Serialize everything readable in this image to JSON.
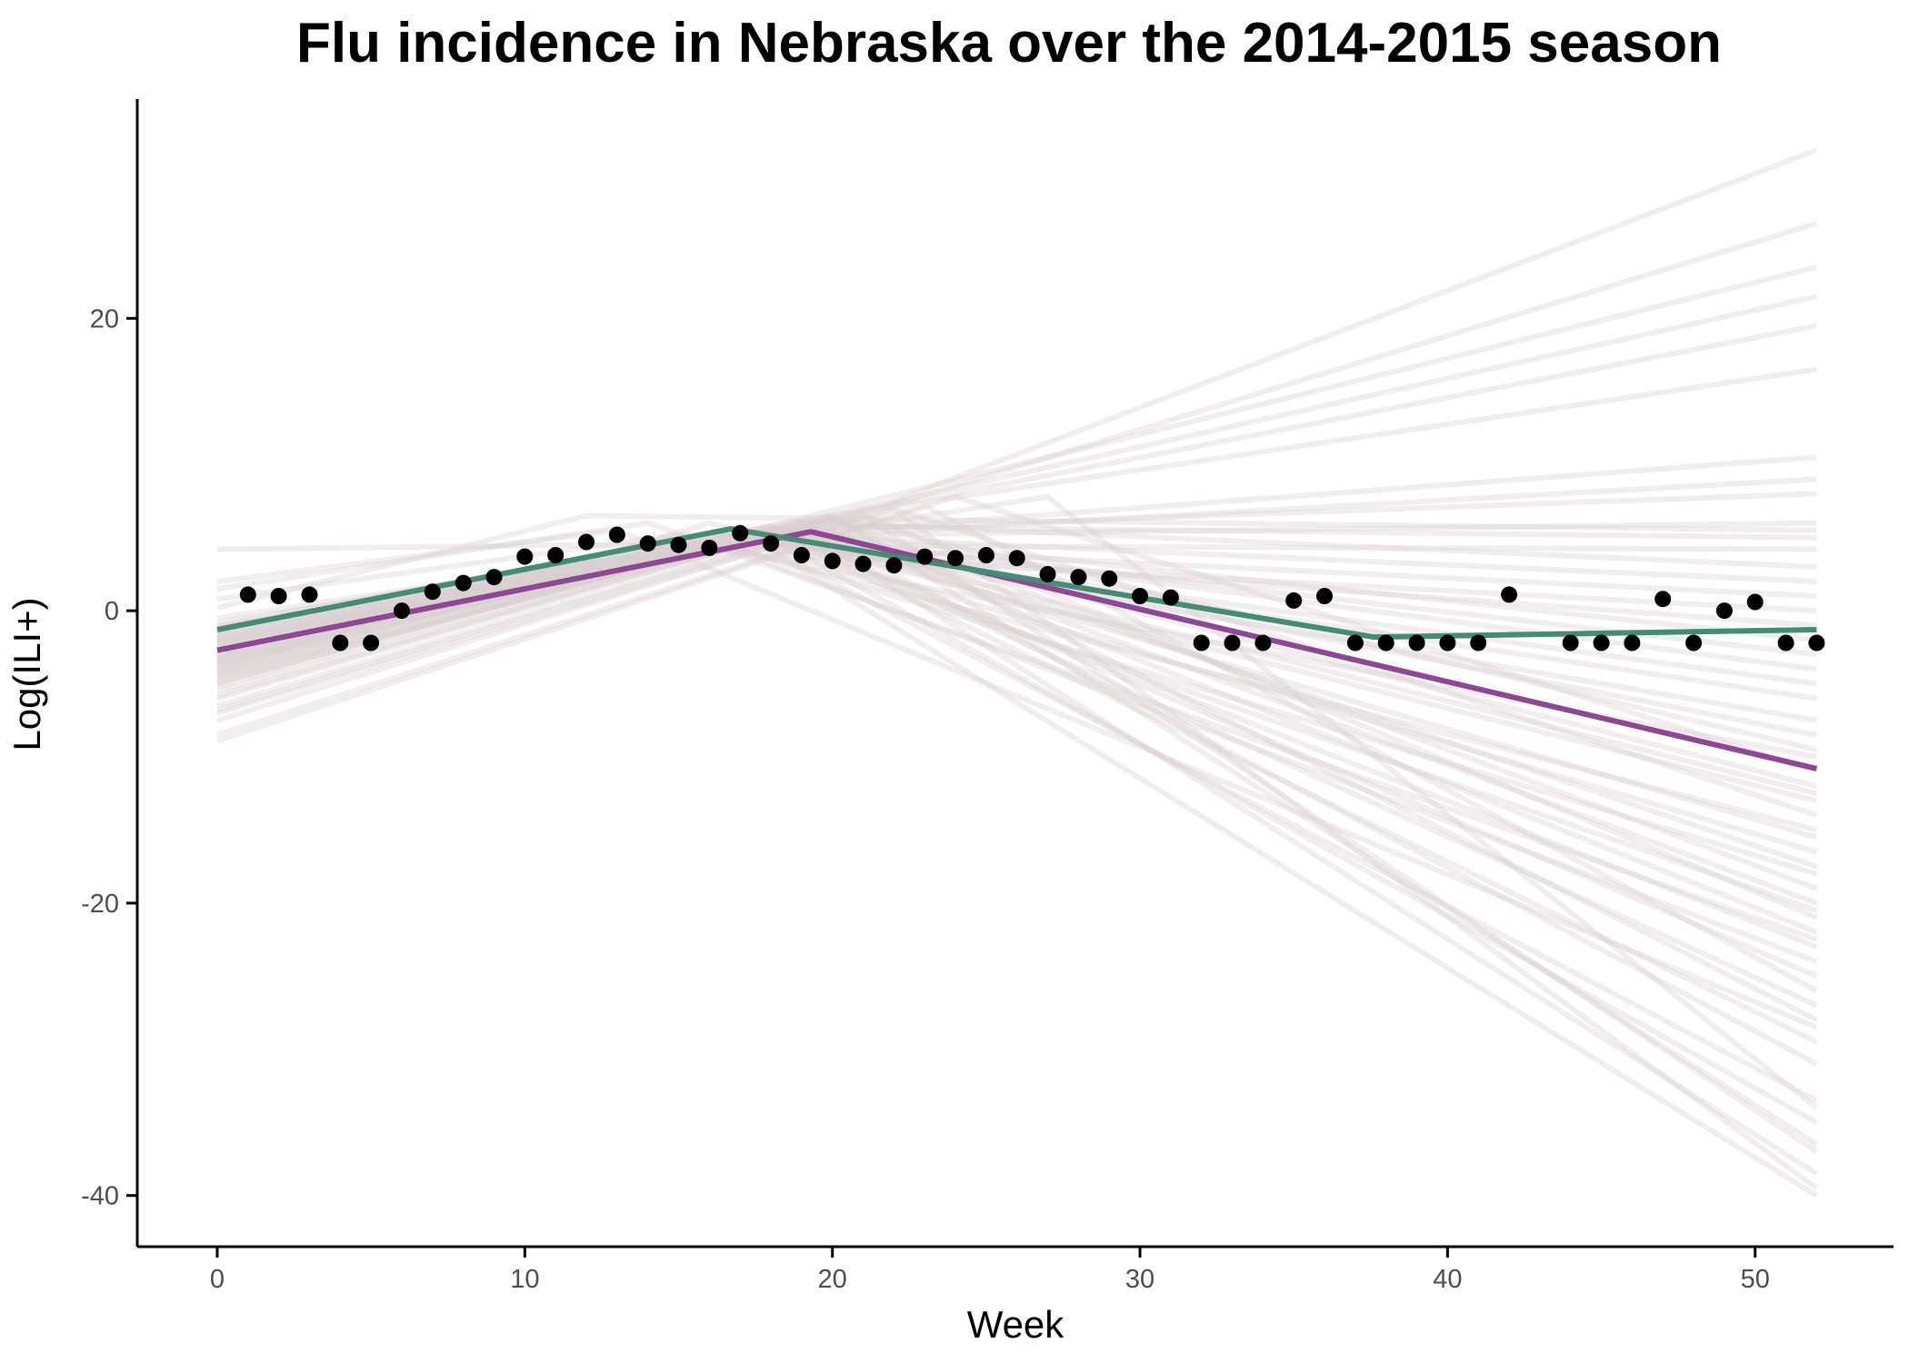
{
  "chart_data": {
    "type": "line",
    "title": "Flu incidence in Nebraska over the 2014-2015 season",
    "xlabel": "Week",
    "ylabel": "Log(ILI+)",
    "xlim": [
      -2.6,
      54.5
    ],
    "ylim": [
      -43.5,
      35
    ],
    "xticks": [
      0,
      10,
      20,
      30,
      40,
      50
    ],
    "yticks": [
      -40,
      -20,
      0,
      20
    ],
    "grid": false,
    "legend": "none",
    "colors": {
      "observed": "#000000",
      "green_fit": "#448c74",
      "purple_fit": "#8c4891",
      "posterior_draws": "#d9cfd2"
    },
    "observed": {
      "x": [
        1,
        2,
        3,
        4,
        5,
        6,
        7,
        8,
        9,
        10,
        11,
        12,
        13,
        14,
        15,
        16,
        17,
        18,
        19,
        20,
        21,
        22,
        23,
        24,
        25,
        26,
        27,
        28,
        29,
        30,
        31,
        32,
        33,
        34,
        35,
        36,
        37,
        38,
        39,
        40,
        41,
        42,
        44,
        45,
        46,
        47,
        48,
        49,
        50,
        51,
        52
      ],
      "y": [
        1.1,
        1.0,
        1.1,
        -2.2,
        -2.2,
        0.0,
        1.3,
        1.9,
        2.3,
        3.7,
        3.8,
        4.7,
        5.2,
        4.6,
        4.5,
        4.3,
        5.3,
        4.6,
        3.8,
        3.4,
        3.2,
        3.1,
        3.7,
        3.6,
        3.8,
        3.6,
        2.5,
        2.3,
        2.2,
        1.0,
        0.9,
        -2.2,
        -2.2,
        -2.2,
        0.7,
        1.0,
        -2.2,
        -2.2,
        -2.2,
        -2.2,
        -2.2,
        1.1,
        -2.2,
        -2.2,
        -2.2,
        0.8,
        -2.2,
        0.0,
        0.6,
        -2.2,
        -2.2
      ]
    },
    "series": [
      {
        "x": [
          0,
          16.7,
          37.6,
          52
        ],
        "y": [
          -1.3,
          5.6,
          -1.8,
          -1.3
        ]
      },
      {
        "x": [
          0,
          19.3,
          52
        ],
        "y": [
          -2.7,
          5.4,
          -10.8
        ]
      }
    ],
    "draws": [
      [
        -4.0,
        16,
        6.0,
        52,
        -13.0
      ],
      [
        -2.5,
        18,
        5.5,
        52,
        -8.5
      ],
      [
        -1.8,
        17,
        5.0,
        52,
        -6.0
      ],
      [
        -3.0,
        15,
        5.2,
        52,
        -15.0
      ],
      [
        -5.0,
        19,
        6.0,
        52,
        -20.0
      ],
      [
        -3.5,
        18,
        5.8,
        52,
        -25.0
      ],
      [
        -2.0,
        16,
        4.8,
        52,
        -18.0
      ],
      [
        -1.0,
        17,
        5.5,
        52,
        -3.0
      ],
      [
        -6.0,
        20,
        6.3,
        52,
        -28.0
      ],
      [
        -4.5,
        18,
        5.0,
        52,
        -35.0
      ],
      [
        -2.2,
        19,
        5.6,
        52,
        -38.5
      ],
      [
        -3.2,
        17,
        5.4,
        52,
        -40.0
      ],
      [
        -4.8,
        20,
        6.5,
        52,
        -36.5
      ],
      [
        -0.5,
        16,
        4.5,
        52,
        -1.0
      ],
      [
        -1.5,
        18,
        5.2,
        52,
        2.0
      ],
      [
        -3.8,
        19,
        5.8,
        52,
        5.0
      ],
      [
        -2.8,
        17,
        5.0,
        52,
        10.5
      ],
      [
        -1.2,
        15,
        4.6,
        52,
        9.0
      ],
      [
        -5.5,
        21,
        6.8,
        52,
        19.5
      ],
      [
        -4.2,
        18,
        5.6,
        52,
        21.5
      ],
      [
        -2.6,
        17,
        5.3,
        52,
        23.5
      ],
      [
        -1.6,
        19,
        6.2,
        52,
        16.5
      ],
      [
        -3.6,
        20,
        6.0,
        52,
        26.5
      ],
      [
        -4.6,
        22,
        7.5,
        52,
        31.5
      ],
      [
        -2.0,
        16,
        4.4,
        52,
        -10.0
      ],
      [
        -3.3,
        18,
        5.4,
        52,
        -12.5
      ],
      [
        -1.9,
        17,
        5.2,
        52,
        -16.5
      ],
      [
        -4.4,
        19,
        5.9,
        52,
        -22.0
      ],
      [
        -3.1,
        18,
        5.5,
        52,
        -29.5
      ],
      [
        -2.4,
        17,
        5.0,
        52,
        -5.0
      ],
      [
        -5.8,
        20,
        6.3,
        52,
        -19.0
      ],
      [
        -0.8,
        15,
        4.2,
        52,
        0.0
      ],
      [
        -3.9,
        19,
        6.1,
        52,
        3.0
      ],
      [
        -2.1,
        17,
        5.1,
        52,
        6.0
      ],
      [
        -1.4,
        16,
        4.8,
        52,
        -24.0
      ],
      [
        -4.1,
        18,
        5.7,
        52,
        -27.0
      ],
      [
        -2.9,
        19,
        5.9,
        52,
        -31.0
      ],
      [
        -3.4,
        17,
        5.3,
        52,
        -33.5
      ],
      [
        -6.5,
        21,
        6.6,
        52,
        -21.0
      ],
      [
        -7.5,
        22,
        7.0,
        52,
        -14.0
      ],
      [
        -8.5,
        23,
        7.2,
        52,
        -26.0
      ],
      [
        -8.9,
        24,
        7.8,
        52,
        -11.0
      ],
      [
        -7.0,
        22,
        6.9,
        52,
        -39.5
      ],
      [
        -6.8,
        21,
        6.5,
        52,
        -37.0
      ],
      [
        4.2,
        12,
        4.5,
        52,
        4.2
      ],
      [
        0.2,
        12,
        6.5,
        52,
        5.5
      ],
      [
        1.5,
        14,
        6.0,
        52,
        -22.5
      ],
      [
        2.0,
        13,
        5.5,
        52,
        -28.5
      ],
      [
        -1.1,
        27,
        7.8,
        52,
        -34.0
      ],
      [
        0.8,
        15,
        5.2,
        52,
        8.0
      ],
      [
        -2.3,
        18,
        5.4,
        52,
        -4.0
      ],
      [
        -3.7,
        17,
        5.1,
        52,
        -7.5
      ],
      [
        -4.9,
        19,
        6.0,
        52,
        -17.5
      ],
      [
        -5.2,
        20,
        6.4,
        52,
        -9.5
      ],
      [
        -1.7,
        16,
        4.7,
        52,
        1.0
      ],
      [
        -2.7,
        18,
        5.6,
        52,
        -2.0
      ],
      [
        -3.0,
        19,
        5.8,
        52,
        -12.0
      ],
      [
        -4.3,
        18,
        5.5,
        52,
        -15.5
      ],
      [
        -3.5,
        17,
        5.2,
        52,
        -20.5
      ],
      [
        -2.2,
        18,
        5.3,
        52,
        -23.0
      ]
    ]
  }
}
